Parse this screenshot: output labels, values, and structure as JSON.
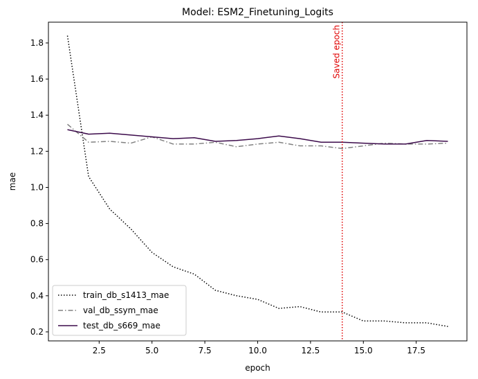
{
  "chart_data": {
    "type": "line",
    "title": "Model: ESM2_Finetuning_Logits",
    "xlabel": "epoch",
    "ylabel": "mae",
    "xlim": [
      0.1,
      19.9
    ],
    "ylim": [
      0.15,
      1.915
    ],
    "xticks": [
      2.5,
      5.0,
      7.5,
      10.0,
      12.5,
      15.0,
      17.5
    ],
    "xtick_labels": [
      "2.5",
      "5.0",
      "7.5",
      "10.0",
      "12.5",
      "15.0",
      "17.5"
    ],
    "yticks": [
      0.2,
      0.4,
      0.6,
      0.8,
      1.0,
      1.2,
      1.4,
      1.6,
      1.8
    ],
    "ytick_labels": [
      "0.2",
      "0.4",
      "0.6",
      "0.8",
      "1.0",
      "1.2",
      "1.4",
      "1.6",
      "1.8"
    ],
    "grid": false,
    "legend_position": "lower-left",
    "x": [
      1,
      2,
      3,
      4,
      5,
      6,
      7,
      8,
      9,
      10,
      11,
      12,
      13,
      14,
      15,
      16,
      17,
      18,
      19
    ],
    "series": [
      {
        "name": "train_db_s1413_mae",
        "color": "#000000",
        "dash": "dotted",
        "values": [
          1.84,
          1.06,
          0.88,
          0.77,
          0.64,
          0.56,
          0.52,
          0.43,
          0.4,
          0.38,
          0.33,
          0.34,
          0.31,
          0.31,
          0.26,
          0.26,
          0.25,
          0.25,
          0.23
        ]
      },
      {
        "name": "val_db_ssym_mae",
        "color": "#808080",
        "dash": "dashdot",
        "values": [
          1.35,
          1.25,
          1.255,
          1.245,
          1.28,
          1.24,
          1.24,
          1.25,
          1.225,
          1.24,
          1.25,
          1.23,
          1.23,
          1.215,
          1.23,
          1.245,
          1.24,
          1.24,
          1.245
        ]
      },
      {
        "name": "test_db_s669_mae",
        "color": "#3b0a4a",
        "dash": "solid",
        "values": [
          1.32,
          1.295,
          1.3,
          1.29,
          1.28,
          1.27,
          1.275,
          1.255,
          1.26,
          1.27,
          1.285,
          1.27,
          1.25,
          1.25,
          1.245,
          1.24,
          1.24,
          1.26,
          1.255
        ]
      }
    ],
    "annotations": [
      {
        "type": "vline",
        "x": 14,
        "color": "#e00000",
        "dash": "dotted",
        "label": "Saved epoch"
      }
    ]
  }
}
